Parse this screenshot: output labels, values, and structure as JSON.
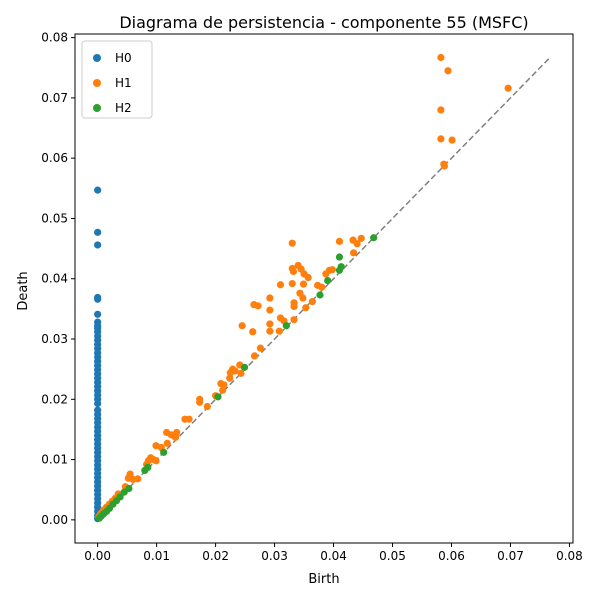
{
  "chart_data": {
    "type": "scatter",
    "title": "Diagrama de persistencia - componente 55 (MSFC)",
    "xlabel": "Birth",
    "ylabel": "Death",
    "xlim": [
      -0.00384,
      0.0806
    ],
    "ylim": [
      -0.00384,
      0.0806
    ],
    "x_ticks": [
      0.0,
      0.01,
      0.02,
      0.03,
      0.04,
      0.05,
      0.06,
      0.07,
      0.08
    ],
    "x_tick_labels": [
      "0.00",
      "0.01",
      "0.02",
      "0.03",
      "0.04",
      "0.05",
      "0.06",
      "0.07",
      "0.08"
    ],
    "y_ticks": [
      0.0,
      0.01,
      0.02,
      0.03,
      0.04,
      0.05,
      0.06,
      0.07,
      0.08
    ],
    "y_tick_labels": [
      "0.00",
      "0.01",
      "0.02",
      "0.03",
      "0.04",
      "0.05",
      "0.06",
      "0.07",
      "0.08"
    ],
    "grid": false,
    "legend_position": "top-left",
    "diagonal": {
      "from": 0.0,
      "to": 0.0767,
      "style": "dashed",
      "color": "#808080"
    },
    "series": [
      {
        "name": "H0",
        "color": "#1f77b4",
        "points": [
          [
            0,
            0.0547
          ],
          [
            0,
            0.0477
          ],
          [
            0,
            0.0456
          ],
          [
            0,
            0.0369
          ],
          [
            0,
            0.0366
          ],
          [
            0,
            0.0341
          ],
          [
            0,
            0.0328
          ],
          [
            0,
            0.0322
          ],
          [
            0,
            0.0318
          ],
          [
            0,
            0.0312
          ],
          [
            0,
            0.0305
          ],
          [
            0,
            0.0298
          ],
          [
            0,
            0.0291
          ],
          [
            0,
            0.0284
          ],
          [
            0,
            0.0277
          ],
          [
            0,
            0.027
          ],
          [
            0,
            0.0263
          ],
          [
            0,
            0.0256
          ],
          [
            0,
            0.0249
          ],
          [
            0,
            0.0242
          ],
          [
            0,
            0.0235
          ],
          [
            0,
            0.0228
          ],
          [
            0,
            0.0221
          ],
          [
            0,
            0.0214
          ],
          [
            0,
            0.0207
          ],
          [
            0,
            0.02
          ],
          [
            0,
            0.0193
          ],
          [
            0,
            0.0182
          ],
          [
            0,
            0.0175
          ],
          [
            0,
            0.0168
          ],
          [
            0,
            0.0161
          ],
          [
            0,
            0.0154
          ],
          [
            0,
            0.0147
          ],
          [
            0,
            0.014
          ],
          [
            0,
            0.0133
          ],
          [
            0,
            0.0126
          ],
          [
            0,
            0.0119
          ],
          [
            0,
            0.0112
          ],
          [
            0,
            0.0105
          ],
          [
            0,
            0.0098
          ],
          [
            0,
            0.0091
          ],
          [
            0,
            0.0084
          ],
          [
            0,
            0.0077
          ],
          [
            0,
            0.007
          ],
          [
            0,
            0.0063
          ],
          [
            0,
            0.0056
          ],
          [
            0,
            0.0049
          ],
          [
            0,
            0.0042
          ],
          [
            0,
            0.0035
          ],
          [
            0,
            0.0028
          ],
          [
            0,
            0.0021
          ],
          [
            0,
            0.0014
          ],
          [
            0,
            0.0007
          ],
          [
            0,
            0.0002
          ]
        ]
      },
      {
        "name": "H1",
        "color": "#ff7f0e",
        "points": [
          [
            0.0582,
            0.0767
          ],
          [
            0.0594,
            0.0745
          ],
          [
            0.0696,
            0.0716
          ],
          [
            0.0582,
            0.068
          ],
          [
            0.0582,
            0.0632
          ],
          [
            0.0601,
            0.063
          ],
          [
            0.0587,
            0.059
          ],
          [
            0.0588,
            0.0587
          ],
          [
            0.033,
            0.0459
          ],
          [
            0.041,
            0.0462
          ],
          [
            0.0433,
            0.0464
          ],
          [
            0.044,
            0.0458
          ],
          [
            0.0447,
            0.0467
          ],
          [
            0.0434,
            0.0443
          ],
          [
            0.033,
            0.0417
          ],
          [
            0.0332,
            0.0412
          ],
          [
            0.034,
            0.0422
          ],
          [
            0.0345,
            0.0416
          ],
          [
            0.035,
            0.0408
          ],
          [
            0.0357,
            0.0402
          ],
          [
            0.0387,
            0.0408
          ],
          [
            0.0393,
            0.0414
          ],
          [
            0.0398,
            0.0415
          ],
          [
            0.0373,
            0.0389
          ],
          [
            0.038,
            0.0386
          ],
          [
            0.031,
            0.039
          ],
          [
            0.033,
            0.0392
          ],
          [
            0.0349,
            0.0391
          ],
          [
            0.0343,
            0.0376
          ],
          [
            0.0348,
            0.0368
          ],
          [
            0.0364,
            0.0362
          ],
          [
            0.0353,
            0.0352
          ],
          [
            0.0333,
            0.036
          ],
          [
            0.0333,
            0.0354
          ],
          [
            0.0292,
            0.0368
          ],
          [
            0.0265,
            0.0357
          ],
          [
            0.0272,
            0.0355
          ],
          [
            0.0292,
            0.0348
          ],
          [
            0.031,
            0.0335
          ],
          [
            0.0316,
            0.033
          ],
          [
            0.0333,
            0.0332
          ],
          [
            0.0245,
            0.0322
          ],
          [
            0.0263,
            0.0312
          ],
          [
            0.0292,
            0.0325
          ],
          [
            0.0292,
            0.0313
          ],
          [
            0.0308,
            0.0313
          ],
          [
            0.0276,
            0.0285
          ],
          [
            0.0266,
            0.0272
          ],
          [
            0.0241,
            0.0257
          ],
          [
            0.0229,
            0.025
          ],
          [
            0.0233,
            0.0247
          ],
          [
            0.0225,
            0.0244
          ],
          [
            0.0224,
            0.0235
          ],
          [
            0.0243,
            0.0243
          ],
          [
            0.0214,
            0.0224
          ],
          [
            0.0209,
            0.0226
          ],
          [
            0.0212,
            0.0215
          ],
          [
            0.02,
            0.0206
          ],
          [
            0.0173,
            0.02
          ],
          [
            0.0173,
            0.0195
          ],
          [
            0.0186,
            0.0188
          ],
          [
            0.0148,
            0.0167
          ],
          [
            0.0155,
            0.0167
          ],
          [
            0.0134,
            0.0145
          ],
          [
            0.0117,
            0.0145
          ],
          [
            0.0125,
            0.0141
          ],
          [
            0.0132,
            0.0137
          ],
          [
            0.0118,
            0.0127
          ],
          [
            0.0099,
            0.0123
          ],
          [
            0.0108,
            0.012
          ],
          [
            0.009,
            0.0103
          ],
          [
            0.0095,
            0.01
          ],
          [
            0.0086,
            0.0098
          ],
          [
            0.0099,
            0.0098
          ],
          [
            0.0083,
            0.0092
          ],
          [
            0.0055,
            0.0076
          ],
          [
            0.0054,
            0.0071
          ],
          [
            0.0052,
            0.0069
          ],
          [
            0.006,
            0.0067
          ],
          [
            0.0068,
            0.0068
          ],
          [
            0.0047,
            0.0055
          ],
          [
            0.0035,
            0.0043
          ],
          [
            0.003,
            0.0036
          ],
          [
            0.0025,
            0.0031
          ],
          [
            0.002,
            0.0026
          ],
          [
            0.0015,
            0.0021
          ],
          [
            0.001,
            0.0016
          ],
          [
            0.0006,
            0.0011
          ],
          [
            0.0004,
            0.0008
          ],
          [
            0.0002,
            0.0005
          ]
        ]
      },
      {
        "name": "H2",
        "color": "#2ca02c",
        "points": [
          [
            0.0468,
            0.0468
          ],
          [
            0.041,
            0.0436
          ],
          [
            0.0413,
            0.042
          ],
          [
            0.041,
            0.0414
          ],
          [
            0.039,
            0.0397
          ],
          [
            0.0377,
            0.0373
          ],
          [
            0.032,
            0.0322
          ],
          [
            0.0249,
            0.0253
          ],
          [
            0.0204,
            0.0204
          ],
          [
            0.0112,
            0.0112
          ],
          [
            0.0085,
            0.0087
          ],
          [
            0.008,
            0.0082
          ],
          [
            0.0053,
            0.0052
          ],
          [
            0.0045,
            0.0046
          ],
          [
            0.0038,
            0.0038
          ],
          [
            0.0032,
            0.0032
          ],
          [
            0.0026,
            0.0026
          ],
          [
            0.002,
            0.0019
          ],
          [
            0.0015,
            0.0014
          ],
          [
            0.001,
            0.001
          ],
          [
            0.0006,
            0.0006
          ],
          [
            0.0003,
            0.0003
          ]
        ]
      }
    ]
  }
}
